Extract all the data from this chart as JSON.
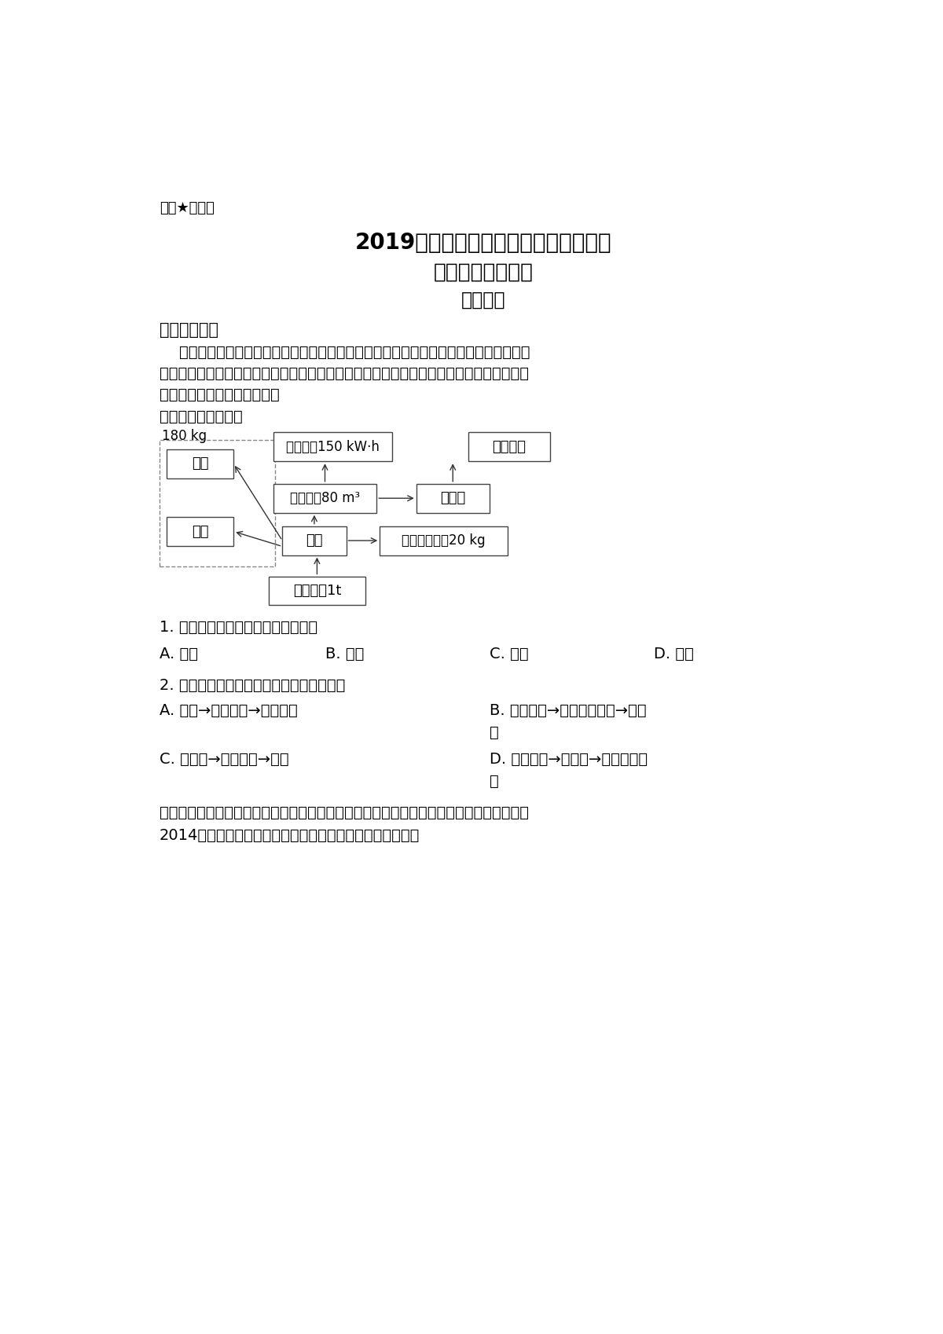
{
  "bg_color": "#ffffff",
  "text_color": "#000000",
  "top_label": "绝密★启用前",
  "title1": "2019年普通高等学校招生全国统一考试",
  "title2": "文科综合能力测试",
  "title3": "地理部分",
  "section1": "一、选择题：",
  "para1_l1": "    我国人口众多，生活垃圾产生量巨大，迫切需要对垃圾进行无害化、资源化处理。近些",
  "para1_l2": "年，某企业开发了厨余垃圾自动处理系统，并在全国很多城市推广。下图示意该厨余垃圾自",
  "para1_l3": "动处理系统的主要工艺流程。",
  "para2": "据此完成下面小题。",
  "q1": "1. 厨余垃圾是图示自动处理系统中的",
  "q1_a": "A. 肥料",
  "q1_b": "B. 原料",
  "q1_c": "C. 能源",
  "q1_d": "D. 产品",
  "q2": "2. 符合图示自动处理系统局部工艺流程的是",
  "q2_a": "A. 废渣→生产沼气→沼气发电",
  "q2_b1": "B. 工业油脂→提取生物油脂→有机",
  "q2_b2": "渣",
  "q2_c": "C. 有机渣→生产沼气→废渣",
  "q2_d1": "D. 生产沼气→有机渣→提取生物油",
  "q2_d2": "脂",
  "para3_l1": "稻谷是重要的粮食种类，粮食的充分供给和区域平衡是保障粮食安全的重要任务。下图反映",
  "para3_l2": "2014年我国不同省份的稻谷供需关系。据此完成下面小题。",
  "diag_180kg": "180 kg",
  "diag_feizha": "废渣",
  "diag_zawu": "杂物",
  "diag_shengchan": "生产沼气80 m³",
  "diag_zaoqi": "沼气发电150 kW·h",
  "diag_youjizha": "有机渣",
  "diag_fenjian": "分拣",
  "diag_tiqv": "提取生物油脂20 kg",
  "diag_chuyulaiji": "厨余垃圾1t",
  "diag_gongyeyouzhi": "工业油脂"
}
